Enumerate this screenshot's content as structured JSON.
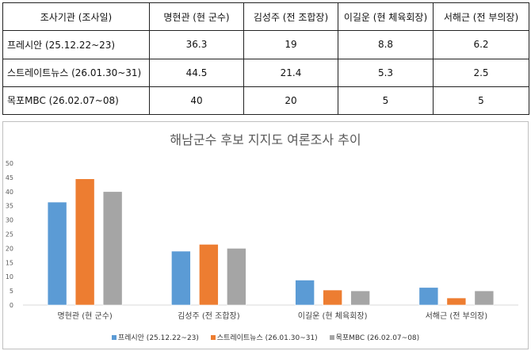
{
  "table": {
    "headers": [
      "조사기관 (조사일)",
      "명현관 (현 군수)",
      "김성주 (전 조합장)",
      "이길운 (현 체육회장)",
      "서해근 (전 부의장)"
    ],
    "rows": [
      {
        "label": "프레시안 (25.12.22~23)",
        "values": [
          "36.3",
          "19",
          "8.8",
          "6.2"
        ]
      },
      {
        "label": "스트레이트뉴스 (26.01.30~31)",
        "values": [
          "44.5",
          "21.4",
          "5.3",
          "2.5"
        ]
      },
      {
        "label": "목포MBC (26.02.07~08)",
        "values": [
          "40",
          "20",
          "5",
          "5"
        ]
      }
    ]
  },
  "chart_data": {
    "type": "bar",
    "title": "해남군수 후보 지지도 여론조사 추이",
    "categories": [
      "명현관 (현 군수)",
      "김성주 (전 조합장)",
      "이길운 (현 체육회장)",
      "서해근 (전 부의장)"
    ],
    "series": [
      {
        "name": "프레시안 (25.12.22~23)",
        "color": "#5b9bd5",
        "values": [
          36.3,
          19,
          8.8,
          6.2
        ]
      },
      {
        "name": "스트레이트뉴스 (26.01.30~31)",
        "color": "#ed7d31",
        "values": [
          44.5,
          21.4,
          5.3,
          2.5
        ]
      },
      {
        "name": "목포MBC (26.02.07~08)",
        "color": "#a5a5a5",
        "values": [
          40,
          20,
          5,
          5
        ]
      }
    ],
    "ylim": [
      0,
      50
    ],
    "yticks": [
      0,
      5,
      10,
      15,
      20,
      25,
      30,
      35,
      40,
      45,
      50
    ],
    "grid": false,
    "legend": "bottom"
  }
}
